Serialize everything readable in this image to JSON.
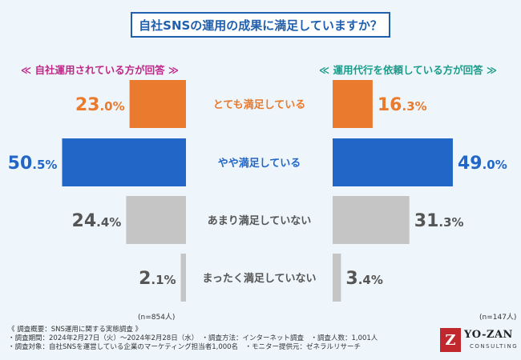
{
  "title": "自社SNSの運用の成果に満足していますか？",
  "left_header": "≪ 自社運用されている方が回答 ≫",
  "right_header": "≪ 運用代行を依頼している方が回答 ≫",
  "colors": {
    "accent_blue": "#1f5fae",
    "orange": "#ea7a2d",
    "blue": "#2266c8",
    "gray": "#c5c5c5",
    "pink": "#c0278a",
    "teal": "#1a9b8a"
  },
  "chart_data": {
    "type": "bar",
    "orientation": "horizontal-butterfly",
    "categories": [
      "とても満足している",
      "やや満足している",
      "あまり満足していない",
      "まったく満足していない"
    ],
    "series": [
      {
        "name": "自社運用されている方",
        "values": [
          23.0,
          50.5,
          24.4,
          2.1
        ],
        "sample": "(n=854人)"
      },
      {
        "name": "運用代行を依頼している方",
        "values": [
          16.3,
          49.0,
          31.3,
          3.4
        ],
        "sample": "(n=147人)"
      }
    ],
    "category_colors": [
      "#ea7a2d",
      "#2266c8",
      "#c5c5c5",
      "#c5c5c5"
    ],
    "label_colors": [
      "#ea7a2d",
      "#2266c8",
      "#555555",
      "#555555"
    ],
    "value_label_colors": [
      "#ea7a2d",
      "#2266c8",
      "#555555",
      "#555555"
    ],
    "unit": "%"
  },
  "footer": {
    "line1": "《 調査概要：SNS運用に関する実態調査 》",
    "line2": "・調査期間：2024年2月27日（火）〜2024年2月28日（水）　・調査方法：インターネット調査　・調査人数：1,001人",
    "line3": "・調査対象：自社SNSを運営している企業のマーケティング担当者1,000名　・モニター提供元：ゼネラルリサーチ"
  },
  "logo": {
    "mark": "Z",
    "text": "YO-ZAN",
    "sub": "CONSULTING"
  }
}
